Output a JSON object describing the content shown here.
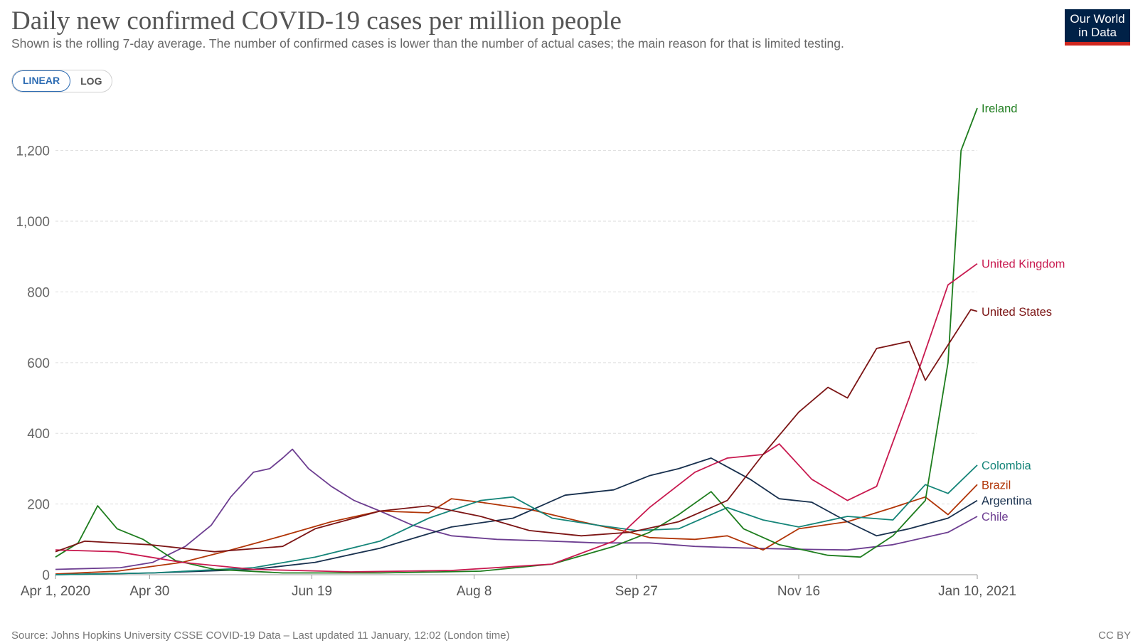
{
  "header": {
    "title": "Daily new confirmed COVID-19 cases per million people",
    "subtitle": "Shown is the rolling 7-day average. The number of confirmed cases is lower than the number of actual cases; the main reason for that is limited testing."
  },
  "logo": {
    "line1": "Our World",
    "line2": "in Data",
    "bg": "#002147",
    "accent": "#ce261e"
  },
  "scale_toggle": {
    "linear": "LINEAR",
    "log": "LOG",
    "selected": "LINEAR"
  },
  "footer": {
    "source": "Source: Johns Hopkins University CSSE COVID-19 Data – Last updated 11 January, 12:02 (London time)",
    "license": "CC BY"
  },
  "chart_data": {
    "type": "line",
    "title": "Daily new confirmed COVID-19 cases per million people",
    "xlabel": "",
    "ylabel": "",
    "xlim": [
      "2020-04-01",
      "2021-01-10"
    ],
    "ylim": [
      0,
      1320
    ],
    "yticks": [
      0,
      200,
      400,
      600,
      800,
      1000,
      1200
    ],
    "ytick_labels": [
      "0",
      "200",
      "400",
      "600",
      "800",
      "1,000",
      "1,200"
    ],
    "xticks": [
      "2020-04-01",
      "2020-04-30",
      "2020-06-19",
      "2020-08-08",
      "2020-09-27",
      "2020-11-16",
      "2021-01-10"
    ],
    "xtick_labels": [
      "Apr 1, 2020",
      "Apr 30",
      "Jun 19",
      "Aug 8",
      "Sep 27",
      "Nov 16",
      "Jan 10, 2021"
    ],
    "grid": true,
    "legend": "right-end labels",
    "series": [
      {
        "name": "Chile",
        "color": "#6d3e91",
        "x": [
          "2020-04-01",
          "2020-04-21",
          "2020-05-01",
          "2020-05-11",
          "2020-05-19",
          "2020-05-25",
          "2020-06-01",
          "2020-06-06",
          "2020-06-10",
          "2020-06-13",
          "2020-06-18",
          "2020-06-25",
          "2020-07-02",
          "2020-07-10",
          "2020-07-20",
          "2020-08-01",
          "2020-08-15",
          "2020-09-01",
          "2020-09-15",
          "2020-10-01",
          "2020-10-15",
          "2020-11-01",
          "2020-11-16",
          "2020-12-01",
          "2020-12-15",
          "2021-01-01",
          "2021-01-10"
        ],
        "y": [
          15,
          20,
          35,
          80,
          140,
          220,
          290,
          300,
          330,
          355,
          300,
          250,
          210,
          180,
          140,
          110,
          100,
          95,
          90,
          90,
          80,
          75,
          72,
          70,
          85,
          120,
          165
        ]
      },
      {
        "name": "Brazil",
        "color": "#b13507",
        "x": [
          "2020-04-01",
          "2020-04-20",
          "2020-05-10",
          "2020-05-25",
          "2020-06-10",
          "2020-06-25",
          "2020-07-10",
          "2020-07-25",
          "2020-08-01",
          "2020-08-10",
          "2020-08-25",
          "2020-09-10",
          "2020-09-25",
          "2020-10-01",
          "2020-10-15",
          "2020-10-25",
          "2020-11-05",
          "2020-11-16",
          "2020-12-01",
          "2020-12-15",
          "2020-12-25",
          "2021-01-01",
          "2021-01-10"
        ],
        "y": [
          2,
          10,
          35,
          70,
          110,
          150,
          180,
          175,
          215,
          205,
          185,
          150,
          120,
          105,
          100,
          110,
          70,
          130,
          150,
          190,
          220,
          170,
          255
        ]
      },
      {
        "name": "Argentina",
        "color": "#18304e",
        "x": [
          "2020-04-01",
          "2020-05-01",
          "2020-06-01",
          "2020-06-20",
          "2020-07-10",
          "2020-08-01",
          "2020-08-20",
          "2020-09-05",
          "2020-09-20",
          "2020-10-01",
          "2020-10-10",
          "2020-10-20",
          "2020-11-01",
          "2020-11-10",
          "2020-11-20",
          "2020-12-01",
          "2020-12-10",
          "2020-12-20",
          "2021-01-01",
          "2021-01-10"
        ],
        "y": [
          0,
          5,
          15,
          35,
          75,
          135,
          160,
          225,
          240,
          280,
          300,
          330,
          270,
          215,
          205,
          150,
          110,
          130,
          160,
          210
        ]
      },
      {
        "name": "Colombia",
        "color": "#158579",
        "x": [
          "2020-04-01",
          "2020-05-01",
          "2020-06-01",
          "2020-06-20",
          "2020-07-10",
          "2020-07-25",
          "2020-08-10",
          "2020-08-20",
          "2020-09-01",
          "2020-09-15",
          "2020-09-27",
          "2020-10-10",
          "2020-10-25",
          "2020-11-05",
          "2020-11-16",
          "2020-12-01",
          "2020-12-15",
          "2020-12-25",
          "2021-01-01",
          "2021-01-10"
        ],
        "y": [
          0,
          5,
          20,
          50,
          95,
          160,
          210,
          220,
          160,
          140,
          125,
          130,
          190,
          155,
          135,
          165,
          155,
          255,
          230,
          310
        ]
      },
      {
        "name": "Ireland",
        "color": "#1e7d1e",
        "x": [
          "2020-04-01",
          "2020-04-08",
          "2020-04-14",
          "2020-04-20",
          "2020-04-28",
          "2020-05-08",
          "2020-05-20",
          "2020-06-10",
          "2020-07-10",
          "2020-08-10",
          "2020-09-01",
          "2020-09-20",
          "2020-10-01",
          "2020-10-10",
          "2020-10-20",
          "2020-10-30",
          "2020-11-10",
          "2020-11-25",
          "2020-12-05",
          "2020-12-15",
          "2020-12-25",
          "2021-01-01",
          "2021-01-05",
          "2021-01-10"
        ],
        "y": [
          50,
          90,
          195,
          130,
          100,
          40,
          15,
          5,
          5,
          10,
          30,
          80,
          120,
          170,
          235,
          130,
          85,
          55,
          50,
          110,
          210,
          600,
          1200,
          1320
        ]
      },
      {
        "name": "United Kingdom",
        "color": "#c8194f",
        "x": [
          "2020-04-01",
          "2020-04-20",
          "2020-05-10",
          "2020-06-01",
          "2020-07-01",
          "2020-08-01",
          "2020-09-01",
          "2020-09-20",
          "2020-10-01",
          "2020-10-15",
          "2020-10-25",
          "2020-11-05",
          "2020-11-10",
          "2020-11-20",
          "2020-12-01",
          "2020-12-10",
          "2020-12-20",
          "2021-01-01",
          "2021-01-10"
        ],
        "y": [
          70,
          65,
          35,
          15,
          8,
          12,
          30,
          95,
          190,
          290,
          330,
          340,
          370,
          270,
          210,
          250,
          500,
          820,
          880
        ]
      },
      {
        "name": "United States",
        "color": "#7c1515",
        "x": [
          "2020-04-01",
          "2020-04-10",
          "2020-04-30",
          "2020-05-20",
          "2020-06-10",
          "2020-06-20",
          "2020-07-10",
          "2020-07-25",
          "2020-08-10",
          "2020-08-25",
          "2020-09-10",
          "2020-09-25",
          "2020-10-10",
          "2020-10-25",
          "2020-11-05",
          "2020-11-16",
          "2020-11-25",
          "2020-12-01",
          "2020-12-10",
          "2020-12-20",
          "2020-12-25",
          "2021-01-01",
          "2021-01-08",
          "2021-01-10"
        ],
        "y": [
          65,
          95,
          85,
          65,
          80,
          130,
          180,
          195,
          165,
          125,
          110,
          120,
          150,
          210,
          340,
          460,
          530,
          500,
          640,
          660,
          550,
          650,
          750,
          745
        ]
      }
    ]
  }
}
